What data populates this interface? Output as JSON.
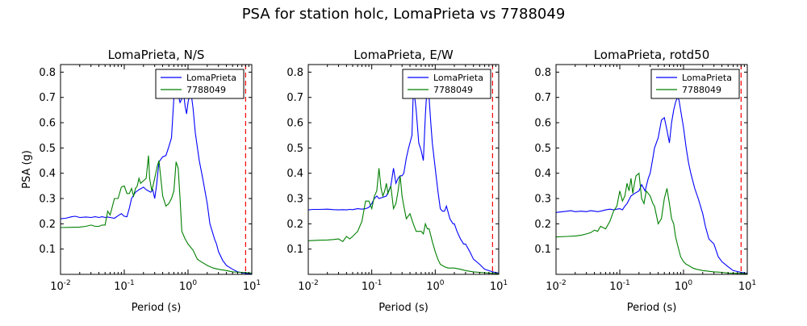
{
  "figure": {
    "suptitle": "PSA for station holc, LomaPrieta vs 7788049",
    "colors": {
      "series1": "#0000ff",
      "series2": "#008000",
      "refline": "#ff0000"
    }
  },
  "chart_data": [
    {
      "type": "line",
      "title": "LomaPrieta, N/S",
      "xlabel": "Period (s)",
      "ylabel": "PSA (g)",
      "xscale": "log",
      "xlim": [
        0.01,
        10
      ],
      "ylim": [
        0.0,
        0.83
      ],
      "xticks": [
        0.01,
        0.1,
        1,
        10
      ],
      "xtick_labels": [
        {
          "base": "10",
          "exp": "-2"
        },
        {
          "base": "10",
          "exp": "-1"
        },
        {
          "base": "10",
          "exp": "0"
        },
        {
          "base": "10",
          "exp": "1"
        }
      ],
      "yticks": [
        0.1,
        0.2,
        0.3,
        0.4,
        0.5,
        0.6,
        0.7,
        0.8
      ],
      "ytick_labels": [
        "0.1",
        "0.2",
        "0.3",
        "0.4",
        "0.5",
        "0.6",
        "0.7",
        "0.8"
      ],
      "grid": false,
      "legend_position": "top-right",
      "ref_line_x": 8,
      "series": [
        {
          "name": "LomaPrieta",
          "x": [
            0.01,
            0.012,
            0.015,
            0.017,
            0.02,
            0.025,
            0.03,
            0.035,
            0.04,
            0.045,
            0.05,
            0.055,
            0.06,
            0.07,
            0.08,
            0.09,
            0.1,
            0.11,
            0.12,
            0.13,
            0.15,
            0.17,
            0.2,
            0.22,
            0.24,
            0.26,
            0.28,
            0.3,
            0.32,
            0.35,
            0.4,
            0.45,
            0.5,
            0.55,
            0.6,
            0.65,
            0.7,
            0.75,
            0.8,
            0.85,
            0.9,
            0.95,
            1.0,
            1.1,
            1.2,
            1.3,
            1.5,
            1.7,
            2.0,
            2.2,
            2.4,
            2.6,
            2.8,
            3.0,
            3.5,
            4.0,
            5.0,
            6.0,
            7.5,
            8.5,
            10.0
          ],
          "values": [
            0.22,
            0.222,
            0.228,
            0.23,
            0.225,
            0.227,
            0.225,
            0.228,
            0.225,
            0.228,
            0.225,
            0.227,
            0.225,
            0.222,
            0.232,
            0.24,
            0.23,
            0.228,
            0.262,
            0.3,
            0.325,
            0.335,
            0.345,
            0.335,
            0.33,
            0.325,
            0.335,
            0.3,
            0.35,
            0.445,
            0.465,
            0.47,
            0.505,
            0.54,
            0.7,
            0.745,
            0.71,
            0.68,
            0.695,
            0.72,
            0.665,
            0.635,
            0.68,
            0.73,
            0.655,
            0.56,
            0.45,
            0.38,
            0.28,
            0.2,
            0.17,
            0.14,
            0.12,
            0.09,
            0.055,
            0.035,
            0.02,
            0.01,
            0.005,
            0.003,
            0.002
          ]
        },
        {
          "name": "7788049",
          "x": [
            0.01,
            0.015,
            0.02,
            0.025,
            0.03,
            0.035,
            0.04,
            0.045,
            0.05,
            0.055,
            0.06,
            0.07,
            0.08,
            0.09,
            0.1,
            0.11,
            0.12,
            0.13,
            0.14,
            0.15,
            0.16,
            0.17,
            0.18,
            0.2,
            0.22,
            0.24,
            0.25,
            0.27,
            0.3,
            0.33,
            0.35,
            0.4,
            0.45,
            0.5,
            0.55,
            0.6,
            0.65,
            0.7,
            0.75,
            0.8,
            0.9,
            1.0,
            1.2,
            1.4,
            1.6,
            2.0,
            2.5,
            3.0,
            4.0,
            5.0,
            7.0,
            10.0
          ],
          "values": [
            0.185,
            0.186,
            0.187,
            0.19,
            0.195,
            0.19,
            0.19,
            0.195,
            0.195,
            0.25,
            0.235,
            0.3,
            0.3,
            0.345,
            0.35,
            0.32,
            0.32,
            0.34,
            0.31,
            0.34,
            0.35,
            0.38,
            0.36,
            0.37,
            0.38,
            0.47,
            0.38,
            0.33,
            0.38,
            0.43,
            0.45,
            0.31,
            0.27,
            0.28,
            0.3,
            0.33,
            0.445,
            0.42,
            0.3,
            0.17,
            0.14,
            0.12,
            0.095,
            0.06,
            0.05,
            0.035,
            0.025,
            0.02,
            0.015,
            0.01,
            0.008,
            0.005
          ]
        }
      ]
    },
    {
      "type": "line",
      "title": "LomaPrieta, E/W",
      "xlabel": "Period (s)",
      "ylabel": "",
      "xscale": "log",
      "xlim": [
        0.01,
        10
      ],
      "ylim": [
        0.0,
        0.83
      ],
      "xticks": [
        0.01,
        0.1,
        1,
        10
      ],
      "xtick_labels": [
        {
          "base": "10",
          "exp": "-2"
        },
        {
          "base": "10",
          "exp": "-1"
        },
        {
          "base": "10",
          "exp": "0"
        },
        {
          "base": "10",
          "exp": "1"
        }
      ],
      "yticks": [
        0.1,
        0.2,
        0.3,
        0.4,
        0.5,
        0.6,
        0.7,
        0.8
      ],
      "ytick_labels": [
        "0.1",
        "0.2",
        "0.3",
        "0.4",
        "0.5",
        "0.6",
        "0.7",
        "0.8"
      ],
      "grid": false,
      "legend_position": "top-right",
      "ref_line_x": 8,
      "series": [
        {
          "name": "LomaPrieta",
          "x": [
            0.01,
            0.012,
            0.015,
            0.02,
            0.025,
            0.03,
            0.035,
            0.04,
            0.045,
            0.05,
            0.06,
            0.07,
            0.08,
            0.09,
            0.1,
            0.11,
            0.12,
            0.13,
            0.15,
            0.17,
            0.2,
            0.22,
            0.24,
            0.26,
            0.28,
            0.3,
            0.32,
            0.35,
            0.38,
            0.4,
            0.43,
            0.45,
            0.48,
            0.5,
            0.55,
            0.6,
            0.65,
            0.7,
            0.75,
            0.8,
            0.85,
            0.9,
            1.0,
            1.1,
            1.2,
            1.3,
            1.4,
            1.5,
            1.7,
            1.9,
            2.0,
            2.2,
            2.5,
            2.8,
            3.0,
            3.5,
            4.0,
            5.0,
            6.0,
            8.0,
            10.0
          ],
          "values": [
            0.255,
            0.257,
            0.257,
            0.258,
            0.256,
            0.255,
            0.256,
            0.255,
            0.257,
            0.256,
            0.26,
            0.258,
            0.26,
            0.265,
            0.28,
            0.3,
            0.31,
            0.3,
            0.305,
            0.31,
            0.35,
            0.42,
            0.36,
            0.38,
            0.39,
            0.39,
            0.4,
            0.46,
            0.5,
            0.52,
            0.55,
            0.72,
            0.69,
            0.65,
            0.52,
            0.49,
            0.45,
            0.63,
            0.76,
            0.7,
            0.6,
            0.52,
            0.42,
            0.33,
            0.26,
            0.25,
            0.25,
            0.27,
            0.22,
            0.2,
            0.2,
            0.17,
            0.14,
            0.12,
            0.12,
            0.09,
            0.06,
            0.04,
            0.02,
            0.01,
            0.005
          ]
        },
        {
          "name": "7788049",
          "x": [
            0.01,
            0.015,
            0.02,
            0.025,
            0.03,
            0.035,
            0.04,
            0.045,
            0.05,
            0.06,
            0.07,
            0.08,
            0.09,
            0.1,
            0.11,
            0.12,
            0.13,
            0.14,
            0.15,
            0.16,
            0.17,
            0.18,
            0.2,
            0.22,
            0.24,
            0.26,
            0.28,
            0.3,
            0.32,
            0.35,
            0.4,
            0.45,
            0.5,
            0.55,
            0.6,
            0.65,
            0.7,
            0.75,
            0.8,
            0.9,
            1.0,
            1.1,
            1.2,
            1.4,
            1.6,
            2.0,
            2.5,
            3.0,
            4.0,
            5.0,
            7.0,
            10.0
          ],
          "values": [
            0.133,
            0.135,
            0.136,
            0.138,
            0.14,
            0.13,
            0.15,
            0.14,
            0.15,
            0.17,
            0.21,
            0.29,
            0.29,
            0.26,
            0.31,
            0.33,
            0.42,
            0.34,
            0.31,
            0.33,
            0.36,
            0.32,
            0.35,
            0.26,
            0.28,
            0.33,
            0.39,
            0.31,
            0.27,
            0.22,
            0.24,
            0.2,
            0.17,
            0.17,
            0.17,
            0.16,
            0.2,
            0.18,
            0.18,
            0.13,
            0.09,
            0.06,
            0.04,
            0.03,
            0.025,
            0.025,
            0.02,
            0.015,
            0.01,
            0.008,
            0.005,
            0.003
          ]
        }
      ]
    },
    {
      "type": "line",
      "title": "LomaPrieta, rotd50",
      "xlabel": "Period (s)",
      "ylabel": "",
      "xscale": "log",
      "xlim": [
        0.01,
        10
      ],
      "ylim": [
        0.0,
        0.83
      ],
      "xticks": [
        0.01,
        0.1,
        1,
        10
      ],
      "xtick_labels": [
        {
          "base": "10",
          "exp": "-2"
        },
        {
          "base": "10",
          "exp": "-1"
        },
        {
          "base": "10",
          "exp": "0"
        },
        {
          "base": "10",
          "exp": "1"
        }
      ],
      "yticks": [
        0.1,
        0.2,
        0.3,
        0.4,
        0.5,
        0.6,
        0.7,
        0.8
      ],
      "ytick_labels": [
        "0.1",
        "0.2",
        "0.3",
        "0.4",
        "0.5",
        "0.6",
        "0.7",
        "0.8"
      ],
      "grid": false,
      "legend_position": "top-right",
      "ref_line_x": 8,
      "series": [
        {
          "name": "LomaPrieta",
          "x": [
            0.01,
            0.012,
            0.015,
            0.017,
            0.02,
            0.025,
            0.03,
            0.035,
            0.04,
            0.045,
            0.05,
            0.06,
            0.07,
            0.08,
            0.09,
            0.1,
            0.11,
            0.12,
            0.13,
            0.15,
            0.17,
            0.2,
            0.22,
            0.25,
            0.28,
            0.3,
            0.33,
            0.35,
            0.4,
            0.45,
            0.5,
            0.55,
            0.6,
            0.65,
            0.7,
            0.75,
            0.8,
            0.85,
            0.9,
            1.0,
            1.1,
            1.2,
            1.3,
            1.5,
            1.7,
            2.0,
            2.2,
            2.5,
            3.0,
            3.5,
            4.0,
            5.0,
            6.0,
            8.0,
            10.0
          ],
          "values": [
            0.245,
            0.247,
            0.25,
            0.252,
            0.248,
            0.25,
            0.248,
            0.252,
            0.25,
            0.248,
            0.25,
            0.255,
            0.258,
            0.255,
            0.258,
            0.26,
            0.255,
            0.27,
            0.28,
            0.31,
            0.32,
            0.33,
            0.355,
            0.33,
            0.38,
            0.4,
            0.46,
            0.5,
            0.54,
            0.61,
            0.62,
            0.57,
            0.52,
            0.6,
            0.65,
            0.68,
            0.7,
            0.69,
            0.65,
            0.58,
            0.5,
            0.44,
            0.4,
            0.34,
            0.3,
            0.24,
            0.19,
            0.14,
            0.12,
            0.07,
            0.05,
            0.03,
            0.015,
            0.008,
            0.004
          ]
        },
        {
          "name": "7788049",
          "x": [
            0.01,
            0.015,
            0.02,
            0.025,
            0.03,
            0.035,
            0.04,
            0.045,
            0.05,
            0.06,
            0.07,
            0.08,
            0.09,
            0.1,
            0.11,
            0.12,
            0.13,
            0.14,
            0.15,
            0.16,
            0.17,
            0.18,
            0.2,
            0.22,
            0.24,
            0.26,
            0.28,
            0.3,
            0.33,
            0.35,
            0.4,
            0.45,
            0.5,
            0.55,
            0.6,
            0.65,
            0.7,
            0.75,
            0.8,
            0.9,
            1.0,
            1.1,
            1.2,
            1.4,
            1.6,
            2.0,
            2.5,
            3.0,
            4.0,
            5.0,
            7.0,
            10.0
          ],
          "values": [
            0.148,
            0.15,
            0.152,
            0.155,
            0.16,
            0.165,
            0.175,
            0.17,
            0.19,
            0.18,
            0.21,
            0.25,
            0.27,
            0.33,
            0.29,
            0.31,
            0.36,
            0.33,
            0.38,
            0.32,
            0.36,
            0.39,
            0.4,
            0.3,
            0.28,
            0.33,
            0.32,
            0.31,
            0.28,
            0.27,
            0.2,
            0.22,
            0.3,
            0.34,
            0.28,
            0.22,
            0.2,
            0.15,
            0.12,
            0.07,
            0.05,
            0.04,
            0.035,
            0.025,
            0.02,
            0.015,
            0.012,
            0.01,
            0.008,
            0.005,
            0.004,
            0.003
          ]
        }
      ]
    }
  ]
}
